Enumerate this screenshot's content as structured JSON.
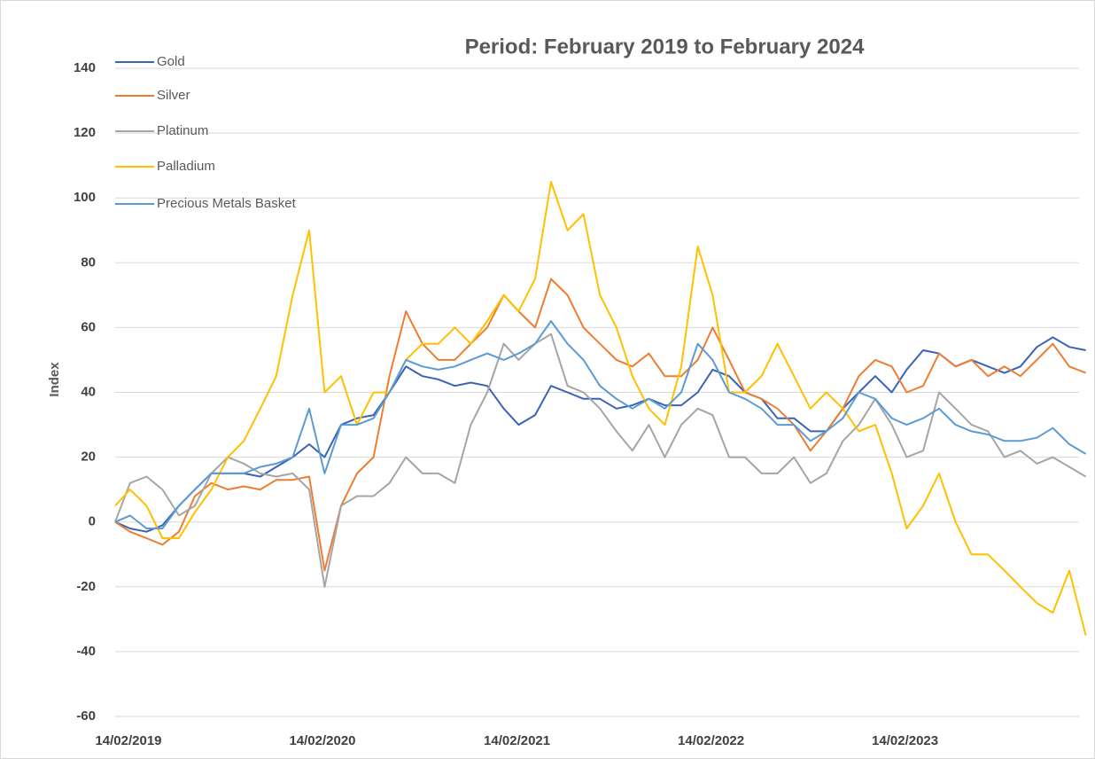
{
  "chart_data": {
    "type": "line",
    "title": "Period: February 2019 to February 2024",
    "y_label": "Index",
    "x": [
      "14/02/2019",
      "14/03/2019",
      "14/04/2019",
      "14/05/2019",
      "14/06/2019",
      "14/07/2019",
      "14/08/2019",
      "14/09/2019",
      "14/10/2019",
      "14/11/2019",
      "14/12/2019",
      "14/01/2020",
      "14/02/2020",
      "14/03/2020",
      "14/04/2020",
      "14/05/2020",
      "14/06/2020",
      "14/07/2020",
      "14/08/2020",
      "14/09/2020",
      "14/10/2020",
      "14/11/2020",
      "14/12/2020",
      "14/01/2021",
      "14/02/2021",
      "14/03/2021",
      "14/04/2021",
      "14/05/2021",
      "14/06/2021",
      "14/07/2021",
      "14/08/2021",
      "14/09/2021",
      "14/10/2021",
      "14/11/2021",
      "14/12/2021",
      "14/01/2022",
      "14/02/2022",
      "14/03/2022",
      "14/04/2022",
      "14/05/2022",
      "14/06/2022",
      "14/07/2022",
      "14/08/2022",
      "14/09/2022",
      "14/10/2022",
      "14/11/2022",
      "14/12/2022",
      "14/01/2023",
      "14/02/2023",
      "14/03/2023",
      "14/04/2023",
      "14/05/2023",
      "14/06/2023",
      "14/07/2023",
      "14/08/2023",
      "14/09/2023",
      "14/10/2023",
      "14/11/2023",
      "14/12/2023",
      "14/01/2024",
      "14/02/2024"
    ],
    "xticks": [
      "14/02/2019",
      "14/02/2020",
      "14/02/2021",
      "14/02/2022",
      "14/02/2023"
    ],
    "ylim": [
      -60,
      140
    ],
    "yticks": [
      -60,
      -40,
      -20,
      0,
      20,
      40,
      60,
      80,
      100,
      120,
      140
    ],
    "grid": true,
    "legend": "top-left",
    "series": [
      {
        "name": "Gold",
        "color": "#3a62b5",
        "values": [
          0,
          -2,
          -3,
          -1,
          5,
          10,
          15,
          15,
          15,
          14,
          17,
          20,
          24,
          20,
          30,
          32,
          33,
          40,
          48,
          45,
          44,
          42,
          43,
          42,
          35,
          30,
          33,
          42,
          40,
          38,
          38,
          35,
          36,
          38,
          36,
          36,
          40,
          47,
          45,
          40,
          38,
          32,
          32,
          28,
          28,
          35,
          40,
          45,
          40,
          47,
          53,
          52,
          48,
          50,
          48,
          46,
          48,
          54,
          57,
          54,
          53
        ]
      },
      {
        "name": "Silver",
        "color": "#ed7d31",
        "values": [
          0,
          -3,
          -5,
          -7,
          -3,
          8,
          12,
          10,
          11,
          10,
          13,
          13,
          14,
          -15,
          5,
          15,
          20,
          45,
          65,
          55,
          50,
          50,
          55,
          60,
          70,
          65,
          60,
          75,
          70,
          60,
          55,
          50,
          48,
          52,
          45,
          45,
          50,
          60,
          50,
          40,
          38,
          35,
          30,
          22,
          28,
          35,
          45,
          50,
          48,
          40,
          42,
          52,
          48,
          50,
          45,
          48,
          45,
          50,
          55,
          48,
          46
        ]
      },
      {
        "name": "Platinum",
        "color": "#a5a5a5",
        "values": [
          0,
          12,
          14,
          10,
          2,
          5,
          15,
          20,
          18,
          15,
          14,
          15,
          10,
          -20,
          5,
          8,
          8,
          12,
          20,
          15,
          15,
          12,
          30,
          40,
          55,
          50,
          55,
          58,
          42,
          40,
          35,
          28,
          22,
          30,
          20,
          30,
          35,
          33,
          20,
          20,
          15,
          15,
          20,
          12,
          15,
          25,
          30,
          38,
          30,
          20,
          22,
          40,
          35,
          30,
          28,
          20,
          22,
          18,
          20,
          17,
          14
        ]
      },
      {
        "name": "Palladium",
        "color": "#ffc000",
        "values": [
          5,
          10,
          5,
          -5,
          -5,
          3,
          10,
          20,
          25,
          35,
          45,
          70,
          90,
          40,
          45,
          30,
          40,
          40,
          50,
          55,
          55,
          60,
          55,
          62,
          70,
          65,
          75,
          105,
          90,
          95,
          70,
          60,
          45,
          35,
          30,
          48,
          85,
          70,
          40,
          40,
          45,
          55,
          45,
          35,
          40,
          35,
          28,
          30,
          15,
          -2,
          5,
          15,
          0,
          -10,
          -10,
          -15,
          -20,
          -25,
          -28,
          -15,
          -35
        ]
      },
      {
        "name": "Precious Metals Basket",
        "color": "#5b9bd5",
        "values": [
          0,
          2,
          -2,
          -2,
          5,
          10,
          15,
          15,
          15,
          17,
          18,
          20,
          35,
          15,
          30,
          30,
          32,
          40,
          50,
          48,
          47,
          48,
          50,
          52,
          50,
          52,
          55,
          62,
          55,
          50,
          42,
          38,
          35,
          38,
          35,
          40,
          55,
          50,
          40,
          38,
          35,
          30,
          30,
          25,
          28,
          32,
          40,
          38,
          32,
          30,
          32,
          35,
          30,
          28,
          27,
          25,
          25,
          26,
          29,
          24,
          21
        ]
      }
    ]
  }
}
